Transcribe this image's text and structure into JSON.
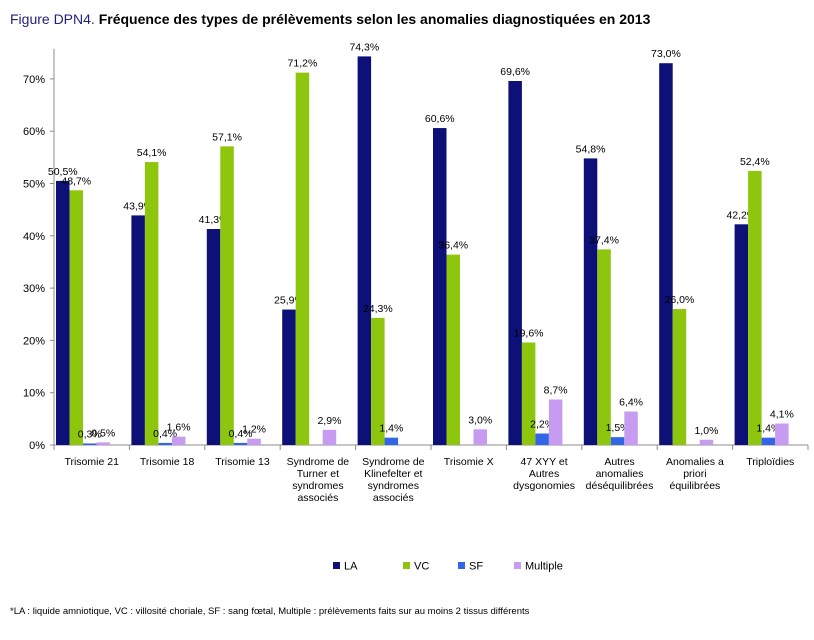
{
  "title": {
    "prefix": "Figure DPN4.",
    "text": "Fréquence des types de prélèvements selon les anomalies diagnostiquées en 2013"
  },
  "footnote": "*LA : liquide amniotique, VC : villosité choriale, SF : sang fœtal, Multiple : prélèvements faits sur au moins 2 tissus différents",
  "chart_data": {
    "type": "bar",
    "categories": [
      [
        "Trisomie 21"
      ],
      [
        "Trisomie 18"
      ],
      [
        "Trisomie 13"
      ],
      [
        "Syndrome de",
        "Turner et",
        "syndromes",
        "associés"
      ],
      [
        "Syndrome de",
        "Klinefelter et",
        "syndromes",
        "associés"
      ],
      [
        "Trisomie X"
      ],
      [
        "47 XYY et",
        "Autres",
        "dysgonomies"
      ],
      [
        "Autres",
        "anomalies",
        "déséquilibrées"
      ],
      [
        "Anomalies a",
        "priori",
        "équilibrées"
      ],
      [
        "Triploïdies"
      ]
    ],
    "series": [
      {
        "name": "LA",
        "color": "#0d1077",
        "values": [
          50.5,
          43.9,
          41.3,
          25.9,
          74.3,
          60.6,
          69.6,
          54.8,
          73.0,
          42.2
        ],
        "labels": [
          "50,5%",
          "43,9%",
          "41,3%",
          "25,9%",
          "74,3%",
          "60,6%",
          "69,6%",
          "54,8%",
          "73,0%",
          "42,2%"
        ]
      },
      {
        "name": "VC",
        "color": "#8dc60d",
        "values": [
          48.7,
          54.1,
          57.1,
          71.2,
          24.3,
          36.4,
          19.6,
          37.4,
          26.0,
          52.4
        ],
        "labels": [
          "48,7%",
          "54,1%",
          "57,1%",
          "71,2%",
          "24,3%",
          "36,4%",
          "19,6%",
          "37,4%",
          "26,0%",
          "52,4%"
        ]
      },
      {
        "name": "SF",
        "color": "#3366e6",
        "values": [
          0.3,
          0.4,
          0.4,
          0,
          1.4,
          0,
          2.2,
          1.5,
          0,
          1.4
        ],
        "labels": [
          "0,3%",
          "0,4%",
          "0,4%",
          "",
          "1,4%",
          "",
          "2,2%",
          "1,5%",
          "",
          "1,4%"
        ]
      },
      {
        "name": "Multiple",
        "color": "#c79cf0",
        "values": [
          0.5,
          1.6,
          1.2,
          2.9,
          0,
          3.0,
          8.7,
          6.4,
          1.0,
          4.1
        ],
        "labels": [
          "0,5%",
          "1,6%",
          "1,2%",
          "2,9%",
          "",
          "3,0%",
          "8,7%",
          "6,4%",
          "1,0%",
          "4,1%"
        ]
      }
    ],
    "yticks": [
      "0%",
      "10%",
      "20%",
      "30%",
      "40%",
      "50%",
      "60%",
      "70%"
    ],
    "ylim": [
      0,
      75
    ],
    "grid": false,
    "legend_position": "bottom"
  }
}
